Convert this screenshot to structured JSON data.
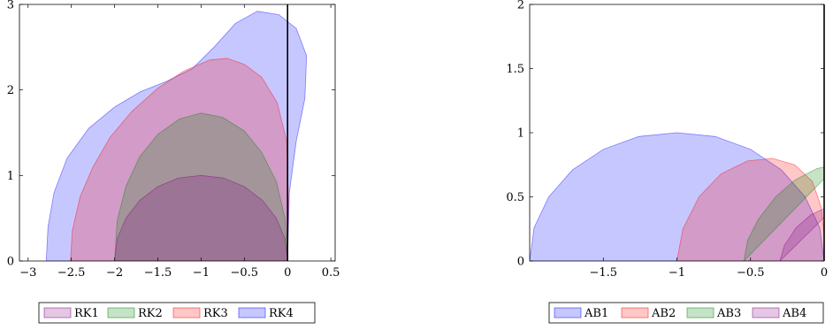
{
  "chart_data": [
    {
      "type": "area",
      "title": "",
      "xlabel": "",
      "ylabel": "",
      "xlim": [
        -3.1,
        0.55
      ],
      "ylim": [
        0,
        3
      ],
      "x_ticks": [
        -3,
        -2.5,
        -2,
        -1.5,
        -1,
        -0.5,
        0,
        0.5
      ],
      "x_tick_labels": [
        "−3",
        "−2.5",
        "−2",
        "−1.5",
        "−1",
        "−0.5",
        "0",
        "0.5"
      ],
      "y_ticks": [
        0,
        1,
        2,
        3
      ],
      "y_tick_labels": [
        "0",
        "1",
        "2",
        "3"
      ],
      "grid": false,
      "vertical_line_x": 0,
      "legend_placement": "bottom-center",
      "series": [
        {
          "name": "RK4",
          "color": "#0000ff",
          "points": [
            [
              -2.79,
              0
            ],
            [
              -2.77,
              0.4
            ],
            [
              -2.7,
              0.8
            ],
            [
              -2.55,
              1.2
            ],
            [
              -2.3,
              1.55
            ],
            [
              -2.0,
              1.8
            ],
            [
              -1.7,
              1.98
            ],
            [
              -1.4,
              2.1
            ],
            [
              -1.1,
              2.25
            ],
            [
              -0.85,
              2.5
            ],
            [
              -0.6,
              2.78
            ],
            [
              -0.35,
              2.92
            ],
            [
              -0.1,
              2.88
            ],
            [
              0.1,
              2.72
            ],
            [
              0.22,
              2.4
            ],
            [
              0.2,
              1.9
            ],
            [
              0.1,
              1.4
            ],
            [
              0.02,
              0.8
            ],
            [
              0,
              0
            ]
          ]
        },
        {
          "name": "RK3",
          "color": "#ff0000",
          "points": [
            [
              -2.51,
              0
            ],
            [
              -2.49,
              0.35
            ],
            [
              -2.4,
              0.75
            ],
            [
              -2.25,
              1.1
            ],
            [
              -2.05,
              1.45
            ],
            [
              -1.8,
              1.75
            ],
            [
              -1.5,
              2.02
            ],
            [
              -1.2,
              2.22
            ],
            [
              -0.9,
              2.35
            ],
            [
              -0.7,
              2.37
            ],
            [
              -0.5,
              2.3
            ],
            [
              -0.3,
              2.15
            ],
            [
              -0.12,
              1.85
            ],
            [
              -0.01,
              1.4
            ],
            [
              0.01,
              0.7
            ],
            [
              0,
              0
            ]
          ]
        },
        {
          "name": "RK2",
          "color": "#008000",
          "points": [
            [
              -2.0,
              0
            ],
            [
              -1.97,
              0.47
            ],
            [
              -1.87,
              0.87
            ],
            [
              -1.71,
              1.22
            ],
            [
              -1.5,
              1.48
            ],
            [
              -1.25,
              1.66
            ],
            [
              -1.0,
              1.73
            ],
            [
              -0.75,
              1.68
            ],
            [
              -0.5,
              1.52
            ],
            [
              -0.3,
              1.27
            ],
            [
              -0.13,
              0.93
            ],
            [
              -0.03,
              0.5
            ],
            [
              0,
              0
            ]
          ]
        },
        {
          "name": "RK1",
          "color": "#800080",
          "points": [
            [
              -2.0,
              0
            ],
            [
              -1.97,
              0.26
            ],
            [
              -1.87,
              0.5
            ],
            [
              -1.71,
              0.71
            ],
            [
              -1.5,
              0.87
            ],
            [
              -1.26,
              0.97
            ],
            [
              -1.0,
              1.0
            ],
            [
              -0.74,
              0.97
            ],
            [
              -0.5,
              0.87
            ],
            [
              -0.29,
              0.71
            ],
            [
              -0.13,
              0.5
            ],
            [
              -0.03,
              0.26
            ],
            [
              0,
              0
            ]
          ]
        }
      ],
      "legend": [
        "RK1",
        "RK2",
        "RK3",
        "RK4"
      ]
    },
    {
      "type": "area",
      "title": "",
      "xlabel": "",
      "ylabel": "",
      "xlim": [
        -2,
        0
      ],
      "ylim": [
        0,
        2
      ],
      "x_ticks": [
        -1.5,
        -1,
        -0.5,
        0
      ],
      "x_tick_labels": [
        "−1.5",
        "−1",
        "−0.5",
        "0"
      ],
      "y_ticks": [
        0,
        0.5,
        1,
        1.5,
        2
      ],
      "y_tick_labels": [
        "0",
        "0.5",
        "1",
        "1.5",
        "2"
      ],
      "grid": false,
      "vertical_line_x": 0,
      "legend_placement": "bottom-center",
      "series": [
        {
          "name": "AB1",
          "color": "#0000ff",
          "points": [
            [
              -2.0,
              0
            ],
            [
              -1.97,
              0.26
            ],
            [
              -1.87,
              0.5
            ],
            [
              -1.71,
              0.71
            ],
            [
              -1.5,
              0.87
            ],
            [
              -1.26,
              0.97
            ],
            [
              -1.0,
              1.0
            ],
            [
              -0.74,
              0.97
            ],
            [
              -0.5,
              0.87
            ],
            [
              -0.29,
              0.71
            ],
            [
              -0.13,
              0.5
            ],
            [
              -0.03,
              0.26
            ],
            [
              0,
              0
            ]
          ]
        },
        {
          "name": "AB2",
          "color": "#ff0000",
          "points": [
            [
              -1.0,
              0
            ],
            [
              -0.96,
              0.25
            ],
            [
              -0.85,
              0.5
            ],
            [
              -0.7,
              0.68
            ],
            [
              -0.52,
              0.78
            ],
            [
              -0.35,
              0.8
            ],
            [
              -0.2,
              0.75
            ],
            [
              -0.08,
              0.62
            ],
            [
              -0.02,
              0.42
            ],
            [
              0,
              0.2
            ],
            [
              0,
              0
            ]
          ]
        },
        {
          "name": "AB3",
          "color": "#008000",
          "points": [
            [
              -0.545,
              0
            ],
            [
              -0.52,
              0.16
            ],
            [
              -0.45,
              0.32
            ],
            [
              -0.33,
              0.5
            ],
            [
              -0.2,
              0.63
            ],
            [
              -0.05,
              0.72
            ],
            [
              0.1,
              0.76
            ]
          ]
        },
        {
          "name": "AB4",
          "color": "#800080",
          "points": [
            [
              -0.3,
              0
            ],
            [
              -0.27,
              0.12
            ],
            [
              -0.19,
              0.26
            ],
            [
              -0.09,
              0.36
            ],
            [
              0,
              0.41
            ],
            [
              0.08,
              0.43
            ]
          ]
        }
      ],
      "legend": [
        "AB1",
        "AB2",
        "AB3",
        "AB4"
      ]
    }
  ]
}
